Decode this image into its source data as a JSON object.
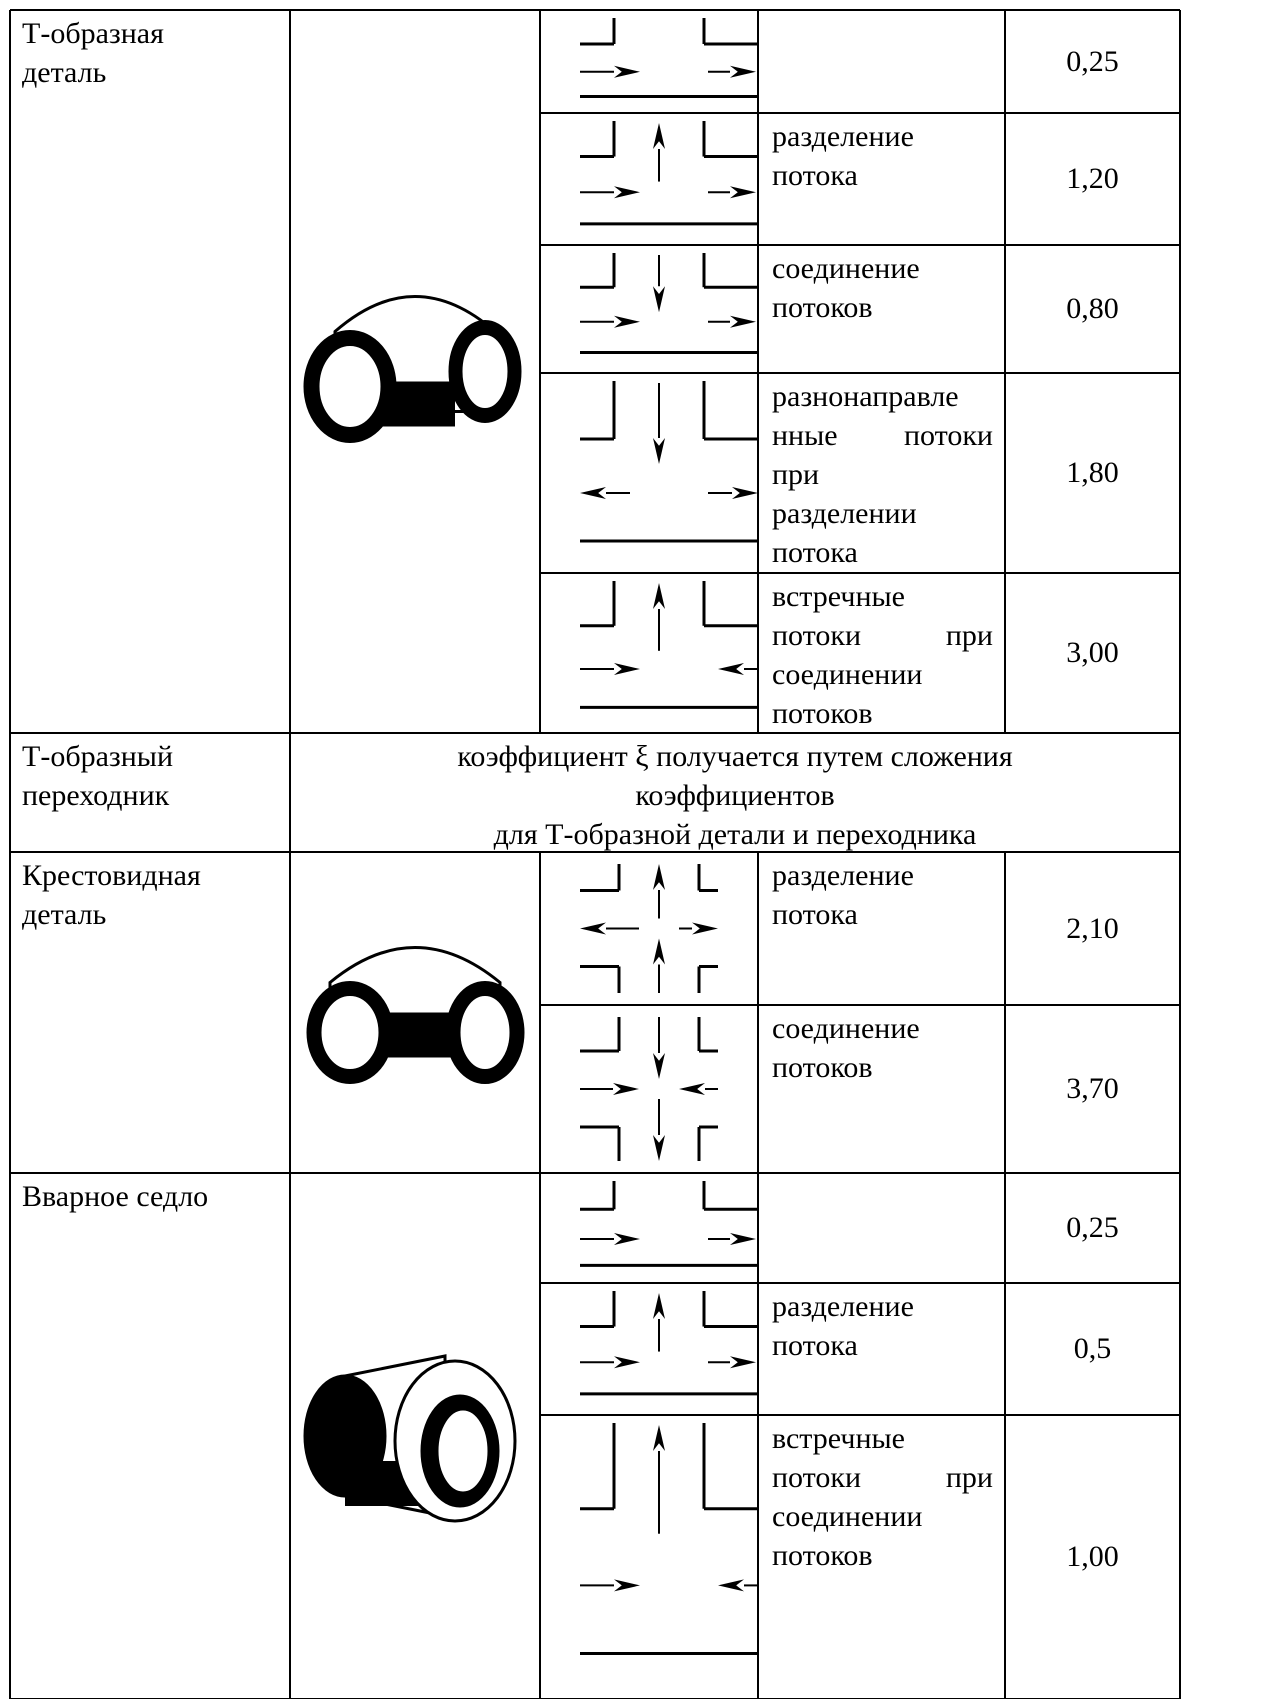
{
  "rows": [
    {
      "name": [
        "Т-образная",
        "деталь"
      ],
      "cases": [
        {
          "value": "0,25"
        },
        {
          "description": [
            "разделение",
            "потока"
          ],
          "value": "1,20"
        },
        {
          "description": [
            "соединение",
            "потоков"
          ],
          "value": "0,80"
        },
        {
          "description": [
            "разнонаправле",
            "нные потоки",
            "при",
            "разделении",
            "потока"
          ],
          "value": "1,80"
        },
        {
          "description": [
            "встречные",
            "потоки при",
            "соединении",
            "потоков"
          ],
          "value": "3,00"
        }
      ]
    },
    {
      "name": [
        "Т-образный",
        "переходник"
      ],
      "note": [
        "коэффициент ξ получается путем сложения",
        "коэффициентов",
        "для Т-образной детали и переходника"
      ]
    },
    {
      "name": [
        "Крестовидная",
        "деталь"
      ],
      "cases": [
        {
          "description": [
            "разделение",
            "потока"
          ],
          "value": "2,10"
        },
        {
          "description": [
            "соединение",
            "потоков"
          ],
          "value": "3,70"
        }
      ]
    },
    {
      "name": [
        "Вварное седло"
      ],
      "cases": [
        {
          "value": "0,25"
        },
        {
          "description": [
            "разделение",
            "потока"
          ],
          "value": "0,5"
        },
        {
          "description": [
            "встречные",
            "потоки при",
            "соединении",
            "потоков"
          ],
          "value": "1,00"
        }
      ]
    }
  ]
}
